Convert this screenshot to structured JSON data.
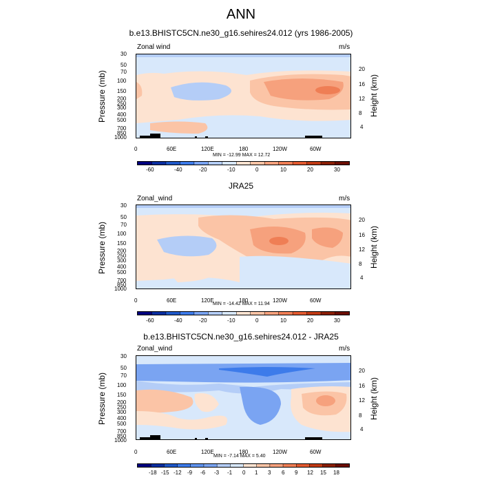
{
  "main_title": "ANN",
  "units": "m/s",
  "y_label_left": "Pressure (mb)",
  "y_label_right": "Height (km)",
  "pressure_ticks": [
    "30",
    "50",
    "70",
    "100",
    "150",
    "200",
    "250",
    "300",
    "400",
    "500",
    "700",
    "850",
    "1000"
  ],
  "height_ticks": [
    "20",
    "16",
    "12",
    "8",
    "4"
  ],
  "lon_ticks": [
    "0",
    "60E",
    "120E",
    "180",
    "120W",
    "60W"
  ],
  "panels": [
    {
      "title": "b.e13.BHISTC5CN.ne30_g16.sehires24.012 (yrs 1986-2005)",
      "field": "Zonal wind",
      "minmax": "MIN = -12.99  MAX =  12.72",
      "colorbar_labels": [
        "-60",
        "-40",
        "-20",
        "-10",
        "0",
        "10",
        "20",
        "30"
      ]
    },
    {
      "title": "JRA25",
      "field": "Zonal_wind",
      "minmax": "MIN = -14.42  MAX =  11.94",
      "colorbar_labels": [
        "-60",
        "-40",
        "-20",
        "-10",
        "0",
        "10",
        "20",
        "30"
      ]
    },
    {
      "title": "b.e13.BHISTC5CN.ne30_g16.sehires24.012 - JRA25",
      "field": "Zonal_wind",
      "minmax": "MIN = -7.14  MAX =  5.40",
      "colorbar_labels": [
        "-18",
        "-15",
        "-12",
        "-9",
        "-6",
        "-3",
        "-1",
        "0",
        "1",
        "3",
        "6",
        "9",
        "12",
        "15",
        "18"
      ]
    }
  ],
  "colors": {
    "abs_scale": [
      "#00007f",
      "#0a2ea0",
      "#1f58c8",
      "#3d7bea",
      "#7aa4f2",
      "#b4cdf7",
      "#d8e8fb",
      "#fde3d1",
      "#fbc4a6",
      "#f6a17d",
      "#ef7e55",
      "#e25a30",
      "#c03a14",
      "#8a1f06",
      "#6b0e02"
    ],
    "diff_scale": [
      "#00007f",
      "#0a2ea0",
      "#1f58c8",
      "#3d7bea",
      "#5f93ef",
      "#7aa4f2",
      "#b4cdf7",
      "#d8e8fb",
      "#fde3d1",
      "#fbc4a6",
      "#f6a17d",
      "#ef7e55",
      "#e25a30",
      "#c03a14",
      "#8a1f06",
      "#6b0e02"
    ]
  },
  "chart_data": [
    {
      "type": "heatmap",
      "title": "b.e13.BHISTC5CN.ne30_g16.sehires24.012 (yrs 1986-2005)",
      "xlabel": "",
      "ylabel": "Pressure (mb)",
      "xlim": [
        0,
        360
      ],
      "ylim": [
        1000,
        30
      ],
      "yscale": "log",
      "min": -12.99,
      "max": 12.72,
      "levels": [
        -60,
        -50,
        -40,
        -30,
        -20,
        -15,
        -10,
        -5,
        0,
        5,
        10,
        15,
        20,
        25,
        30
      ],
      "features": [
        {
          "lon_start": 45,
          "lon_end": 110,
          "p_top": 120,
          "p_bottom": 200,
          "value": -5
        },
        {
          "lon_start": 0,
          "lon_end": 20,
          "p_top": 100,
          "p_bottom": 250,
          "value": 5
        },
        {
          "lon_start": 165,
          "lon_end": 305,
          "p_top": 80,
          "p_bottom": 300,
          "value": 10
        },
        {
          "lon_start": 265,
          "lon_end": 295,
          "p_top": 130,
          "p_bottom": 160,
          "value": 12
        }
      ]
    },
    {
      "type": "heatmap",
      "title": "JRA25",
      "xlabel": "",
      "ylabel": "Pressure (mb)",
      "xlim": [
        0,
        360
      ],
      "ylim": [
        1000,
        30
      ],
      "yscale": "log",
      "min": -14.42,
      "max": 11.94,
      "levels": [
        -60,
        -50,
        -40,
        -30,
        -20,
        -15,
        -10,
        -5,
        0,
        5,
        10,
        15,
        20,
        25,
        30
      ],
      "features": [
        {
          "lon_start": 45,
          "lon_end": 110,
          "p_top": 120,
          "p_bottom": 250,
          "value": -5
        },
        {
          "lon_start": 165,
          "lon_end": 300,
          "p_top": 70,
          "p_bottom": 350,
          "value": 10
        },
        {
          "lon_start": 205,
          "lon_end": 235,
          "p_top": 140,
          "p_bottom": 170,
          "value": 12
        }
      ]
    },
    {
      "type": "heatmap",
      "title": "b.e13.BHISTC5CN.ne30_g16.sehires24.012 - JRA25",
      "xlabel": "",
      "ylabel": "Pressure (mb)",
      "xlim": [
        0,
        360
      ],
      "ylim": [
        1000,
        30
      ],
      "yscale": "log",
      "min": -7.14,
      "max": 5.4,
      "levels": [
        -18,
        -15,
        -12,
        -9,
        -6,
        -3,
        -1,
        0,
        1,
        3,
        6,
        9,
        12,
        15,
        18
      ],
      "features": [
        {
          "lon_start": 0,
          "lon_end": 360,
          "p_top": 40,
          "p_bottom": 80,
          "value": -3
        },
        {
          "lon_start": 140,
          "lon_end": 250,
          "p_top": 45,
          "p_bottom": 60,
          "value": -6
        },
        {
          "lon_start": 150,
          "lon_end": 230,
          "p_top": 80,
          "p_bottom": 400,
          "value": -3
        },
        {
          "lon_start": 260,
          "lon_end": 330,
          "p_top": 140,
          "p_bottom": 300,
          "value": 3
        }
      ]
    }
  ]
}
